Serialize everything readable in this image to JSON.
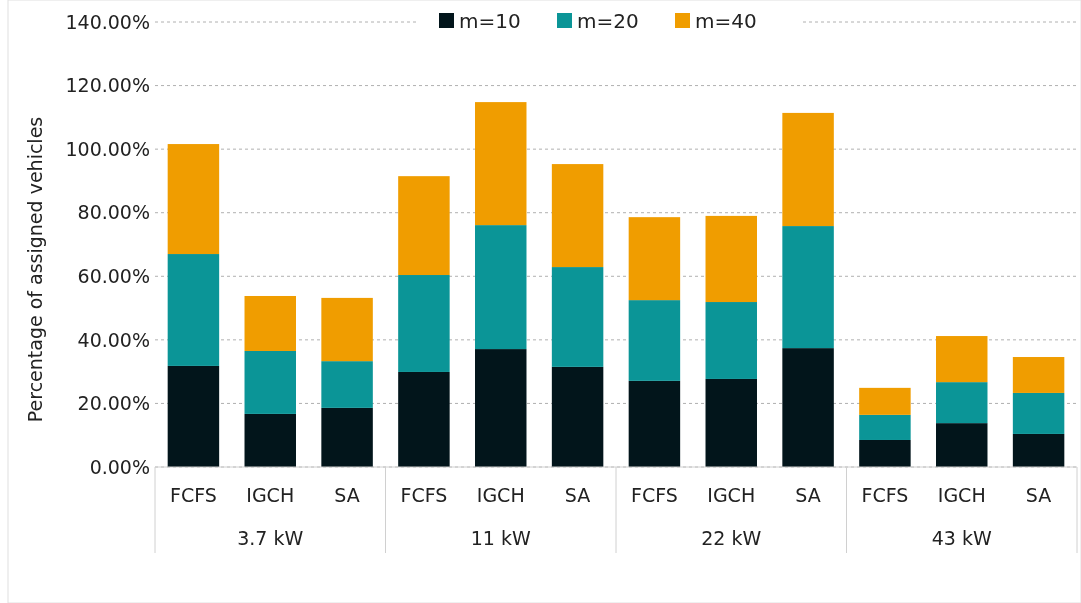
{
  "chart_data": {
    "type": "bar",
    "stacked": true,
    "ylabel": "Percentage of assigned vehicles",
    "categories": [
      "FCFS",
      "IGCH",
      "SA",
      "FCFS",
      "IGCH",
      "SA",
      "FCFS",
      "IGCH",
      "SA",
      "FCFS",
      "IGCH",
      "SA"
    ],
    "annotations": [
      "3.7 kW",
      "11 kW",
      "22 kW",
      "43 kW"
    ],
    "series": [
      {
        "name": "m=10",
        "color": "#02151b",
        "values": [
          31.8,
          16.7,
          18.6,
          29.9,
          37.1,
          31.5,
          27.1,
          27.7,
          37.4,
          8.5,
          13.8,
          10.4
        ]
      },
      {
        "name": "m=20",
        "color": "#0b9597",
        "values": [
          35.2,
          19.8,
          14.7,
          30.5,
          39.0,
          31.4,
          25.4,
          24.2,
          38.4,
          7.9,
          12.9,
          12.9
        ]
      },
      {
        "name": "m=40",
        "color": "#f09d00",
        "values": [
          34.6,
          17.3,
          19.9,
          31.1,
          38.7,
          32.4,
          26.1,
          27.1,
          35.6,
          8.5,
          14.5,
          11.3
        ]
      }
    ],
    "ylim": [
      0,
      140
    ],
    "yticks": [
      {
        "value": 0,
        "label": "0.00%"
      },
      {
        "value": 20,
        "label": "20.00%"
      },
      {
        "value": 40,
        "label": "40.00%"
      },
      {
        "value": 60,
        "label": "60.00%"
      },
      {
        "value": 80,
        "label": "80.00%"
      },
      {
        "value": 100,
        "label": "100.00%"
      },
      {
        "value": 120,
        "label": "120.00%"
      },
      {
        "value": 140,
        "label": "140.00%"
      }
    ],
    "grid": "y",
    "legend": "top"
  }
}
